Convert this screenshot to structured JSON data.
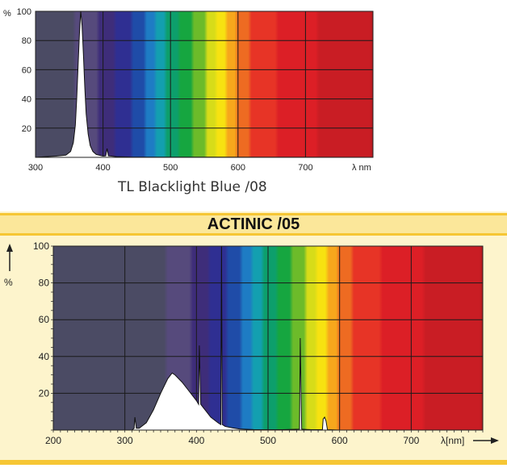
{
  "chart_data": [
    {
      "type": "area",
      "title": "",
      "caption": "TL Blacklight Blue /08",
      "ylabel": "%",
      "xlabel": "λ nm",
      "xlim": [
        300,
        800
      ],
      "ylim": [
        0,
        100
      ],
      "x_ticks": [
        300,
        400,
        500,
        600,
        700
      ],
      "y_ticks": [
        20,
        40,
        60,
        80,
        100
      ],
      "grid": true,
      "background": "visible-spectrum",
      "series": [
        {
          "points": [
            [
              300,
              0
            ],
            [
              315,
              0.5
            ],
            [
              330,
              0.8
            ],
            [
              345,
              1.5
            ],
            [
              352,
              4
            ],
            [
              356,
              10
            ],
            [
              359,
              22
            ],
            [
              361,
              40
            ],
            [
              363,
              62
            ],
            [
              365,
              84
            ],
            [
              367,
              100
            ],
            [
              369,
              90
            ],
            [
              371,
              70
            ],
            [
              373,
              48
            ],
            [
              375,
              30
            ],
            [
              378,
              16
            ],
            [
              381,
              8
            ],
            [
              385,
              4
            ],
            [
              390,
              2
            ],
            [
              400,
              0.8
            ],
            [
              404,
              1
            ],
            [
              406,
              6
            ],
            [
              408,
              1
            ],
            [
              420,
              0.5
            ],
            [
              440,
              0.2
            ],
            [
              800,
              0
            ]
          ]
        }
      ]
    },
    {
      "type": "area",
      "title": "ACTINIC /05",
      "ylabel": "%",
      "xlabel": "λ[nm]",
      "xlim": [
        200,
        800
      ],
      "ylim": [
        0,
        100
      ],
      "x_ticks": [
        200,
        300,
        400,
        500,
        600,
        700
      ],
      "y_ticks": [
        20,
        40,
        60,
        80,
        100
      ],
      "grid": true,
      "background": "visible-spectrum",
      "series": [
        {
          "points": [
            [
              310,
              0
            ],
            [
              313,
              1
            ],
            [
              314,
              7
            ],
            [
              316,
              1
            ],
            [
              320,
              1
            ],
            [
              330,
              4
            ],
            [
              340,
              11
            ],
            [
              350,
              20
            ],
            [
              360,
              28
            ],
            [
              366,
              31
            ],
            [
              370,
              30
            ],
            [
              380,
              26
            ],
            [
              390,
              21
            ],
            [
              400,
              16
            ],
            [
              403,
              14
            ],
            [
              404,
              46
            ],
            [
              406,
              14
            ],
            [
              410,
              12
            ],
            [
              420,
              7
            ],
            [
              430,
              4
            ],
            [
              434,
              3
            ],
            [
              435,
              100
            ],
            [
              436,
              3
            ],
            [
              440,
              2
            ],
            [
              450,
              1.2
            ],
            [
              460,
              0.6
            ],
            [
              480,
              0.3
            ],
            [
              520,
              0.2
            ],
            [
              544,
              0.5
            ],
            [
              545,
              50
            ],
            [
              547,
              0.5
            ],
            [
              560,
              0.2
            ],
            [
              576,
              0.2
            ],
            [
              577,
              6
            ],
            [
              579,
              7
            ],
            [
              581,
              5
            ],
            [
              583,
              0.2
            ],
            [
              600,
              0
            ],
            [
              800,
              0
            ]
          ]
        }
      ]
    }
  ]
}
